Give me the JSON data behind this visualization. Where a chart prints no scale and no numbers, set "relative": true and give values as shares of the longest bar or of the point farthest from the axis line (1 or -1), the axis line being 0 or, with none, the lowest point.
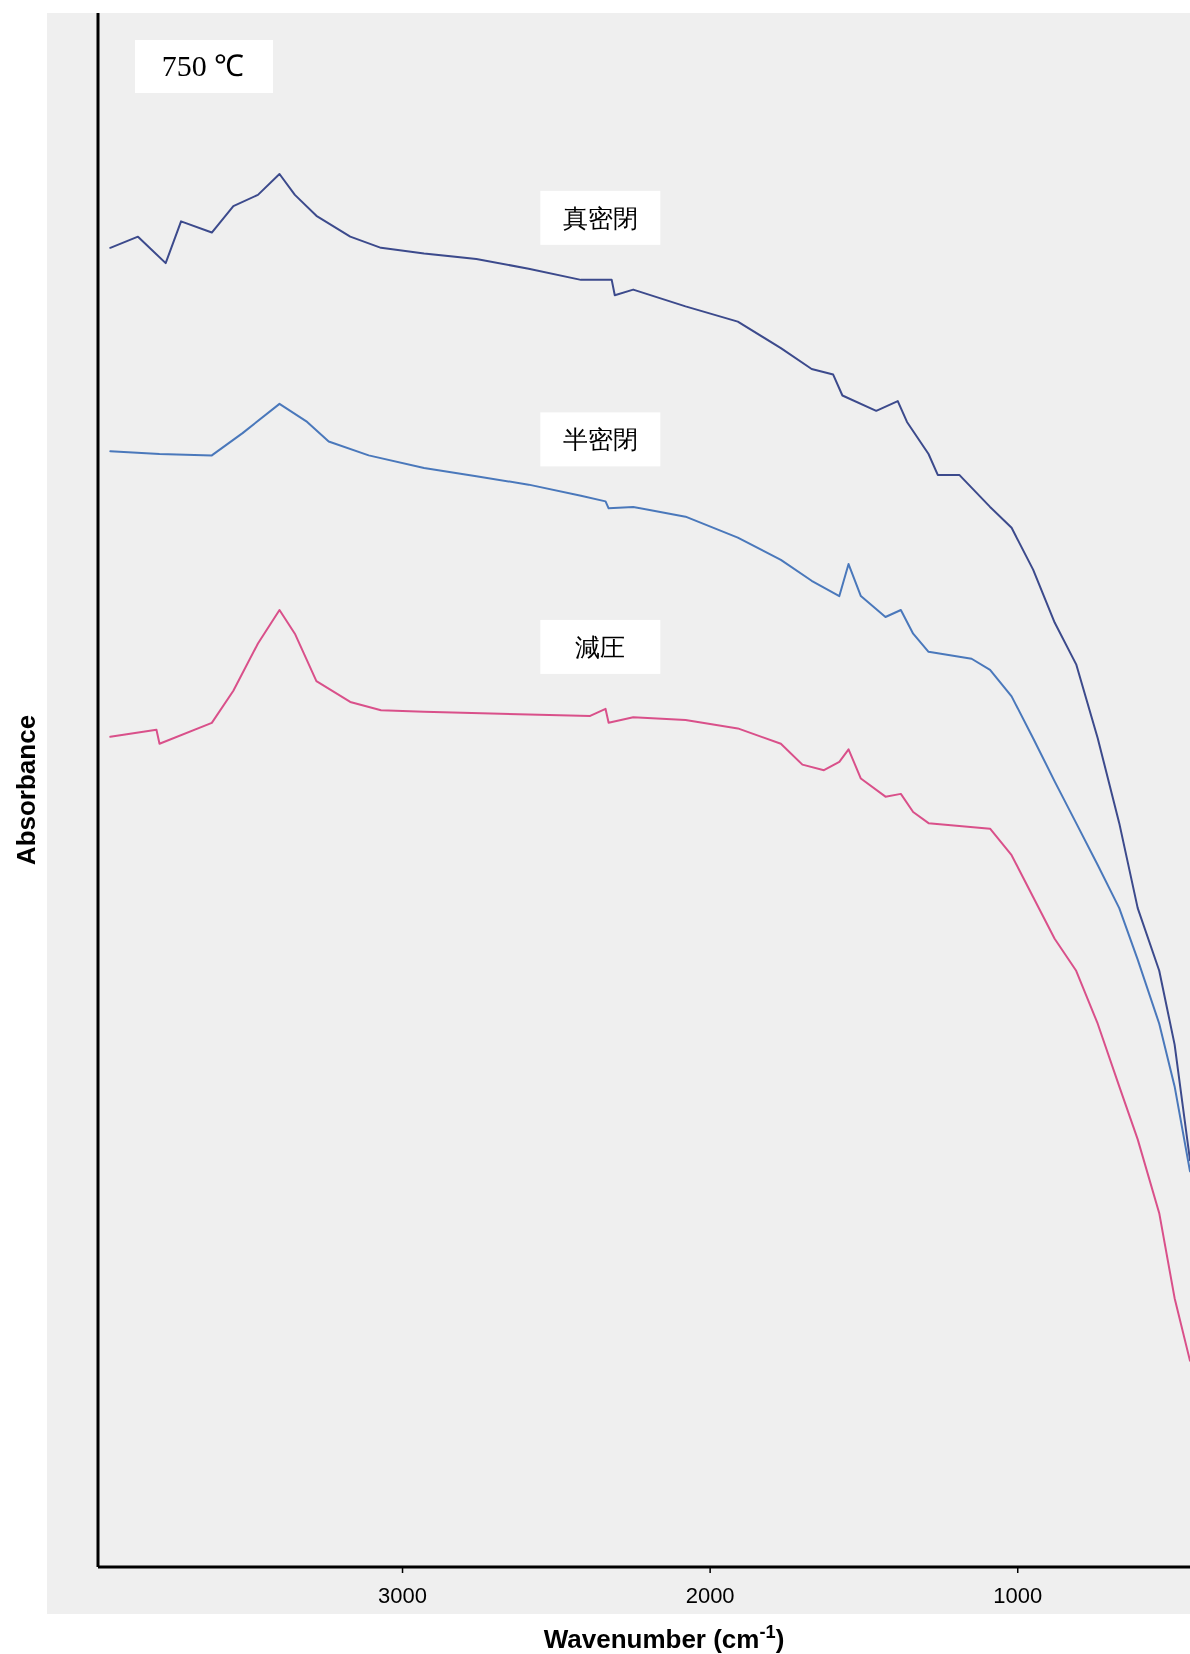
{
  "chart_data": {
    "type": "line",
    "relative": true,
    "xlabel": "Wavenumber (cm$^{-1}$)",
    "ylabel": "Absorbance",
    "annotations": [
      "750 ℃"
    ],
    "xlim": [
      3990,
      440
    ],
    "xticks": [
      3000,
      2000,
      1000
    ],
    "grid": false,
    "marker": "none",
    "line_style": "solid",
    "series": [
      {
        "name": "真密閉",
        "color": "#3c4a8c",
        "x": [
          3950,
          3860,
          3770,
          3720,
          3620,
          3550,
          3470,
          3400,
          3350,
          3280,
          3170,
          3070,
          2930,
          2760,
          2590,
          2420,
          2320,
          2310,
          2250,
          2080,
          1910,
          1770,
          1670,
          1600,
          1570,
          1460,
          1390,
          1360,
          1290,
          1260,
          1190,
          1090,
          1020,
          950,
          880,
          810,
          740,
          670,
          610,
          540,
          490,
          440
        ],
        "values": [
          0.947,
          0.955,
          0.936,
          0.966,
          0.958,
          0.977,
          0.985,
          1.0,
          0.985,
          0.97,
          0.955,
          0.947,
          0.943,
          0.939,
          0.932,
          0.924,
          0.924,
          0.913,
          0.917,
          0.905,
          0.894,
          0.875,
          0.86,
          0.856,
          0.841,
          0.83,
          0.837,
          0.822,
          0.799,
          0.784,
          0.784,
          0.761,
          0.746,
          0.716,
          0.678,
          0.648,
          0.595,
          0.534,
          0.473,
          0.428,
          0.375,
          0.292
        ]
      },
      {
        "name": "半密閉",
        "color": "#4a78bb",
        "x": [
          3950,
          3790,
          3620,
          3520,
          3400,
          3310,
          3240,
          3110,
          2930,
          2760,
          2590,
          2420,
          2340,
          2330,
          2250,
          2080,
          1910,
          1770,
          1670,
          1580,
          1550,
          1510,
          1430,
          1380,
          1340,
          1290,
          1150,
          1090,
          1020,
          950,
          880,
          810,
          740,
          670,
          610,
          540,
          490,
          440
        ],
        "values": [
          0.801,
          0.799,
          0.798,
          0.814,
          0.835,
          0.822,
          0.808,
          0.798,
          0.789,
          0.783,
          0.777,
          0.769,
          0.765,
          0.76,
          0.761,
          0.754,
          0.739,
          0.723,
          0.708,
          0.697,
          0.72,
          0.697,
          0.682,
          0.687,
          0.67,
          0.657,
          0.652,
          0.644,
          0.625,
          0.595,
          0.564,
          0.534,
          0.504,
          0.473,
          0.436,
          0.39,
          0.345,
          0.284
        ]
      },
      {
        "name": "減圧",
        "color": "#d9508a",
        "x": [
          3950,
          3800,
          3790,
          3620,
          3550,
          3470,
          3400,
          3350,
          3280,
          3170,
          3070,
          2930,
          2590,
          2390,
          2340,
          2330,
          2250,
          2080,
          1910,
          1770,
          1700,
          1630,
          1580,
          1550,
          1510,
          1430,
          1380,
          1340,
          1290,
          1090,
          1020,
          950,
          880,
          810,
          740,
          670,
          610,
          540,
          490,
          440
        ],
        "values": [
          0.596,
          0.601,
          0.591,
          0.606,
          0.629,
          0.663,
          0.687,
          0.67,
          0.636,
          0.621,
          0.615,
          0.614,
          0.612,
          0.611,
          0.616,
          0.606,
          0.61,
          0.608,
          0.602,
          0.591,
          0.576,
          0.572,
          0.578,
          0.587,
          0.566,
          0.553,
          0.555,
          0.542,
          0.534,
          0.53,
          0.511,
          0.481,
          0.451,
          0.428,
          0.39,
          0.345,
          0.307,
          0.254,
          0.193,
          0.148
        ]
      }
    ]
  }
}
